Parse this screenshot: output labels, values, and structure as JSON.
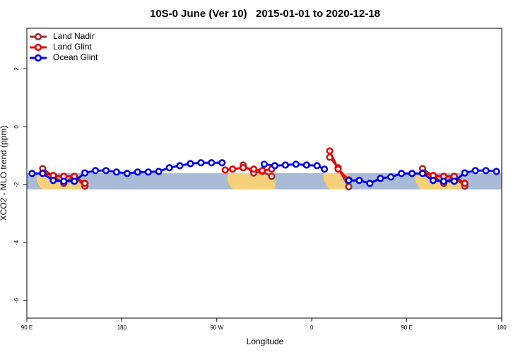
{
  "chart_data": {
    "type": "line",
    "title": "10S-0 June (Ver 10)   2015-01-01 to 2020-12-18",
    "xlabel": "Longitude",
    "ylabel": "XCO2 - MLO trend (ppm)",
    "xlim": [
      90,
      540
    ],
    "ylim": [
      -6.6,
      3.4
    ],
    "xticks": [
      {
        "value": 90,
        "label": "90 E"
      },
      180,
      {
        "value": 270,
        "label": "90 W"
      },
      {
        "value": 360,
        "label": "0"
      },
      {
        "value": 450,
        "label": "90 E"
      },
      {
        "value": 540,
        "label": "180"
      }
    ],
    "yticks": [
      2,
      0,
      -2,
      -4,
      -6
    ],
    "legend": "top-left",
    "series": [
      {
        "name": "Land Nadir",
        "color": "#a52a2a",
        "x": [
          105,
          115,
          125,
          135,
          145,
          220,
          295,
          305,
          313,
          322,
          350,
          377,
          385,
          395,
          430,
          465,
          475,
          485,
          495,
          505
        ],
        "values": [
          -1.44,
          -1.71,
          -1.95,
          -1.71,
          -2.05,
          null,
          -1.32,
          -1.59,
          -1.54,
          -1.71,
          null,
          -1.05,
          -1.41,
          -2.07,
          null,
          -1.44,
          -1.71,
          -1.95,
          -1.71,
          -2.05
        ]
      },
      {
        "name": "Land Glint",
        "color": "#ee0000",
        "x": [
          105,
          115,
          125,
          135,
          145,
          220,
          278,
          285,
          295,
          305,
          313,
          322,
          350,
          377,
          385,
          395,
          430,
          465,
          475,
          485,
          495,
          505
        ],
        "values": [
          -1.59,
          -1.68,
          -1.71,
          -1.71,
          -1.95,
          null,
          -1.49,
          -1.46,
          -1.41,
          -1.46,
          -1.51,
          -1.46,
          null,
          -0.83,
          -1.46,
          -1.83,
          null,
          -1.59,
          -1.68,
          -1.71,
          -1.71,
          -1.95
        ]
      },
      {
        "name": "Ocean Glint",
        "color": "#0000ee",
        "x": [
          95,
          105,
          115,
          125,
          135,
          145,
          155,
          165,
          175,
          185,
          195,
          205,
          215,
          225,
          235,
          245,
          255,
          265,
          275,
          295,
          315,
          325,
          335,
          345,
          355,
          365,
          372,
          384,
          395,
          405,
          415,
          425,
          435,
          445,
          455,
          465,
          475,
          485,
          495,
          505,
          515,
          525,
          535
        ],
        "values": [
          -1.61,
          -1.61,
          -1.85,
          -1.88,
          -1.88,
          -1.59,
          -1.51,
          -1.51,
          -1.56,
          -1.61,
          -1.56,
          -1.56,
          -1.54,
          -1.41,
          -1.34,
          -1.27,
          -1.24,
          -1.24,
          -1.24,
          null,
          -1.29,
          -1.34,
          -1.32,
          -1.29,
          -1.32,
          -1.34,
          -1.46,
          null,
          -1.85,
          -1.85,
          -1.95,
          -1.78,
          -1.73,
          -1.61,
          -1.61,
          -1.61,
          -1.85,
          -1.88,
          -1.88,
          -1.59,
          -1.51,
          -1.51,
          -1.54
        ]
      }
    ]
  }
}
